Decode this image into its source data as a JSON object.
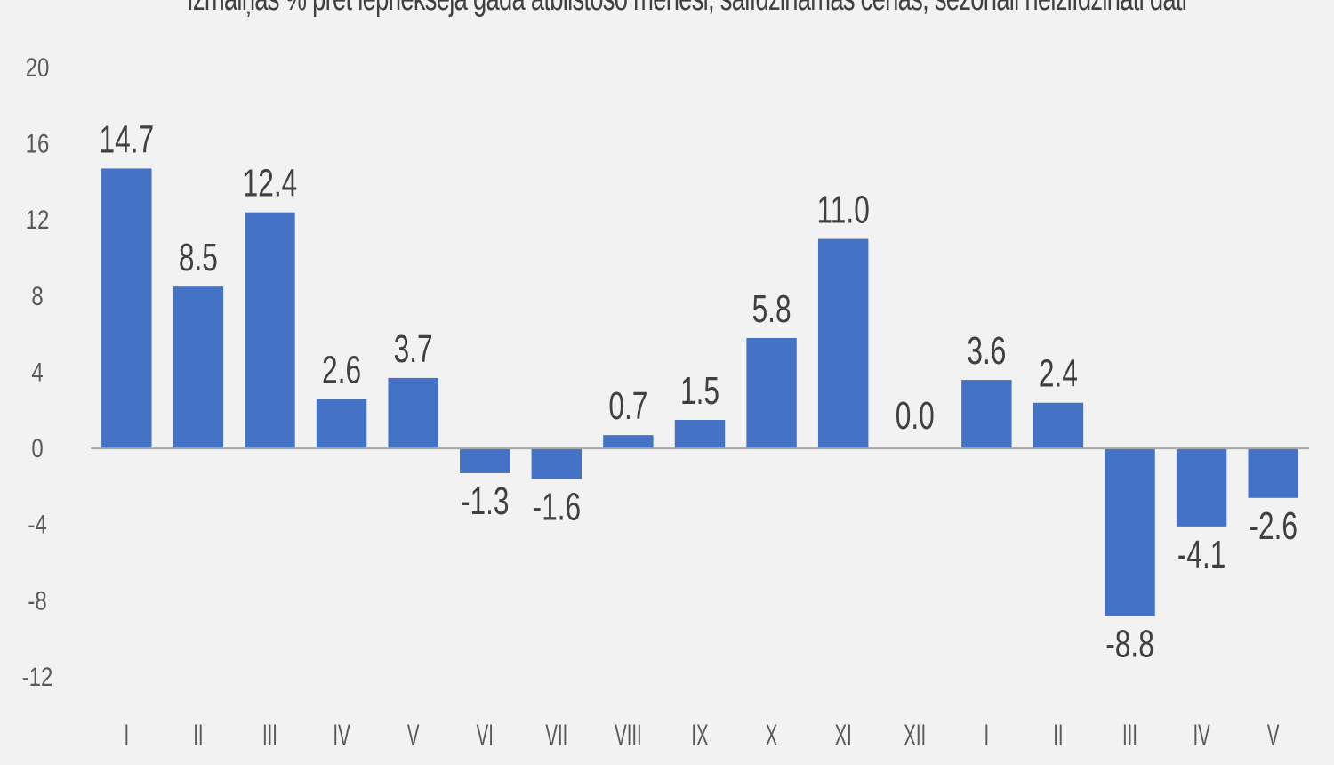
{
  "chart_data": {
    "type": "bar",
    "title": "Izmaiņas % pret iepriekšējā gada atbilstošo mēnesi, salīdzināmās cenās, sezonāli neizlīdzināti dati",
    "categories": [
      "I",
      "II",
      "III",
      "IV",
      "V",
      "VI",
      "VII",
      "VIII",
      "IX",
      "X",
      "XI",
      "XII",
      "I",
      "II",
      "III",
      "IV",
      "V"
    ],
    "values": [
      14.7,
      8.5,
      12.4,
      2.6,
      3.7,
      -1.3,
      -1.6,
      0.7,
      1.5,
      5.8,
      11.0,
      0.0,
      3.6,
      2.4,
      -8.8,
      -4.1,
      -2.6
    ],
    "data_labels": [
      "14.7",
      "8.5",
      "12.4",
      "2.6",
      "3.7",
      "-1.3",
      "-1.6",
      "0.7",
      "1.5",
      "5.8",
      "11.0",
      "0.0",
      "3.6",
      "2.4",
      "-8.8",
      "-4.1",
      "-2.6"
    ],
    "yticks": [
      "20",
      "16",
      "12",
      "8",
      "4",
      "0",
      "-4",
      "-8",
      "-12"
    ],
    "ylim": [
      -12,
      20
    ],
    "xlabel": "",
    "ylabel": "",
    "grid": false,
    "legend": "none",
    "colors": {
      "bar": "#4472c4",
      "axis": "#a6a6a6",
      "background": "#f2f2f2"
    }
  }
}
